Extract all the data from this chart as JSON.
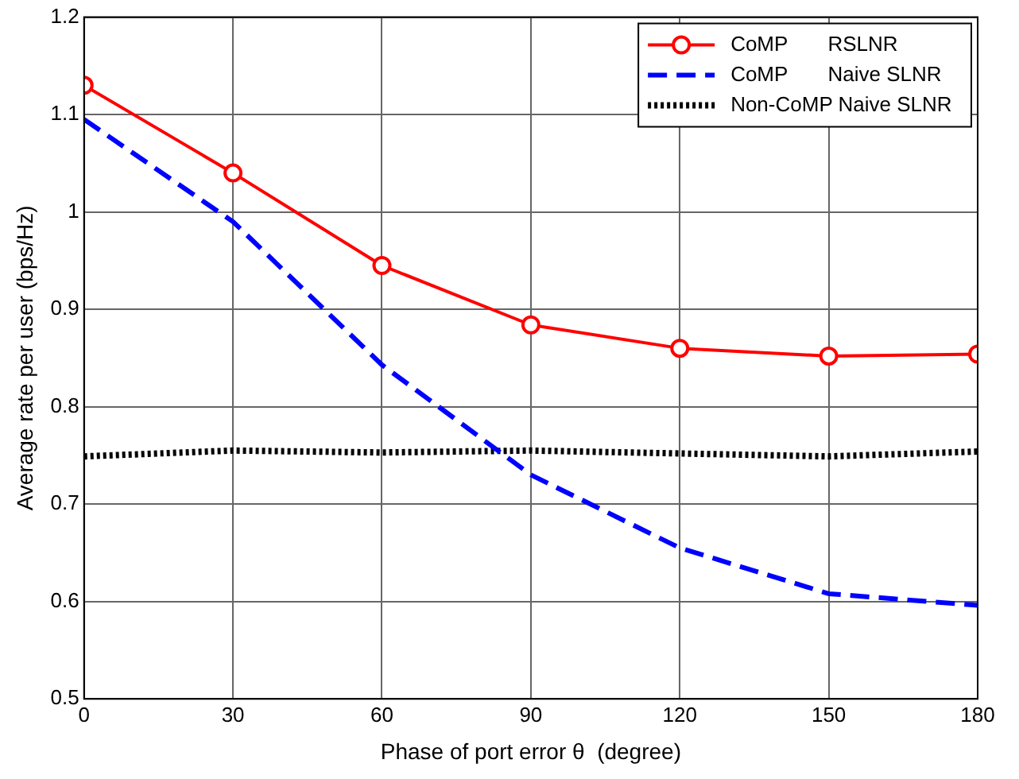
{
  "chart_data": {
    "type": "line",
    "xlabel": "Phase of port error θ  (degree)",
    "ylabel": "Average rate per user (bps/Hz)",
    "x": [
      0,
      30,
      60,
      90,
      120,
      150,
      180
    ],
    "series": [
      {
        "name": "CoMP       RSLNR",
        "color": "#ff0000",
        "marker": "circle",
        "line_style": "solid",
        "values": [
          1.13,
          1.04,
          0.945,
          0.884,
          0.86,
          0.852,
          0.854
        ]
      },
      {
        "name": "CoMP       Naive SLNR",
        "color": "#0000ff",
        "marker": "none",
        "line_style": "dashed",
        "values": [
          1.095,
          0.99,
          0.843,
          0.73,
          0.655,
          0.608,
          0.596
        ]
      },
      {
        "name": "Non-CoMP Naive SLNR",
        "color": "#000000",
        "marker": "none",
        "line_style": "dotted",
        "values": [
          0.749,
          0.755,
          0.753,
          0.755,
          0.752,
          0.749,
          0.754
        ]
      }
    ],
    "xlim": [
      0,
      180
    ],
    "xticks": [
      0,
      30,
      60,
      90,
      120,
      150,
      180
    ],
    "ylim": [
      0.5,
      1.2
    ],
    "yticks": [
      0.5,
      0.6,
      0.7,
      0.8,
      0.9,
      1,
      1.1,
      1.2
    ],
    "grid": true,
    "legend": "top right"
  }
}
